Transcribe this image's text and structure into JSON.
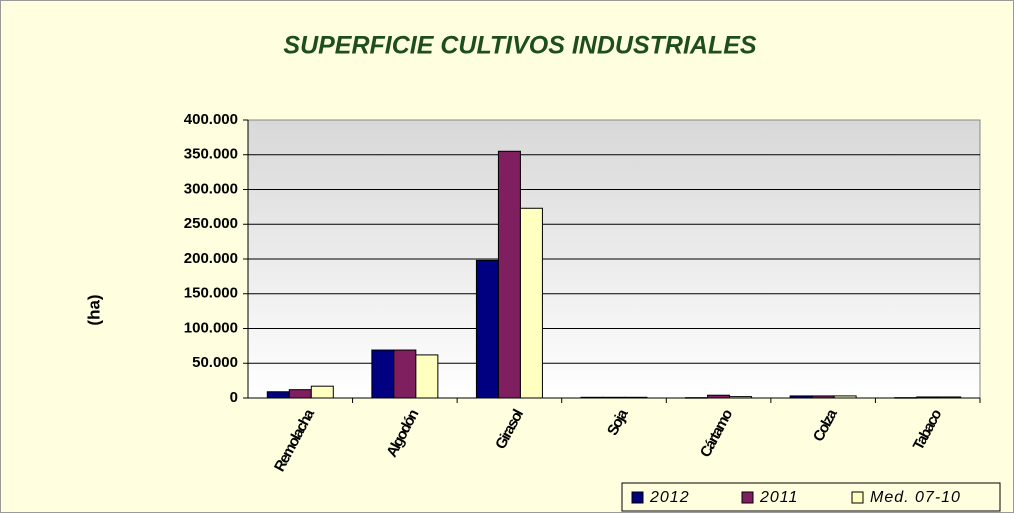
{
  "chart_data": {
    "type": "bar",
    "title": "SUPERFICIE CULTIVOS INDUSTRIALES",
    "y_label": "(ha)",
    "categories": [
      "Remolacha",
      "Algodón",
      "Girasol",
      "Soja",
      "Cártamo",
      "Colza",
      "Tabaco"
    ],
    "series": [
      {
        "name": "2012",
        "color": "#000080",
        "values": [
          9000,
          69000,
          198000,
          1000,
          500,
          3000,
          500
        ]
      },
      {
        "name": "2011",
        "color": "#7f1f5f",
        "values": [
          12000,
          69000,
          355000,
          1000,
          4000,
          3000,
          1500
        ]
      },
      {
        "name": "Med. 07-10",
        "color": "#ffffc0",
        "values": [
          17000,
          62000,
          273000,
          1000,
          2000,
          3000,
          1500
        ]
      }
    ],
    "ylim": [
      0,
      400000
    ],
    "yticks": [
      0,
      {
        "value": 50000,
        "label": "50.000"
      },
      {
        "value": 100000,
        "label": "100.000"
      },
      {
        "value": 150000,
        "label": "150.000"
      },
      {
        "value": 200000,
        "label": "200.000"
      },
      {
        "value": 250000,
        "label": "250.000"
      },
      {
        "value": 300000,
        "label": "300.000"
      },
      {
        "value": 350000,
        "label": "350.000"
      },
      {
        "value": 400000,
        "label": "400.000"
      }
    ],
    "grid": true,
    "legend": "bottom-right"
  }
}
